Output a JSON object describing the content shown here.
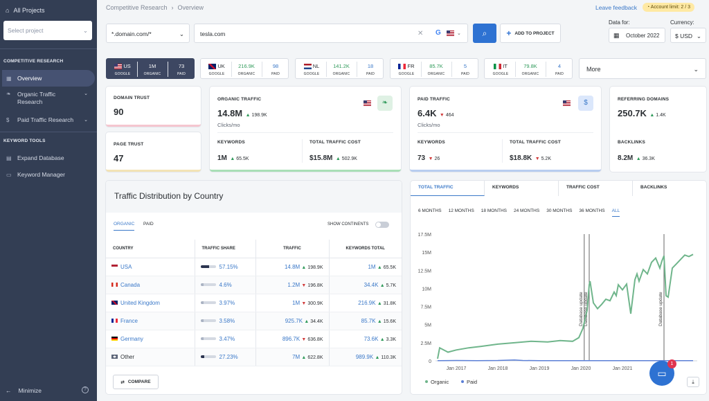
{
  "sidebar": {
    "all_projects": "All Projects",
    "select_project": "Select project",
    "section1": "COMPETITIVE RESEARCH",
    "items": [
      "Overview",
      "Organic Traffic Research",
      "Paid Traffic Research"
    ],
    "section2": "KEYWORD TOOLS",
    "tools": [
      "Expand Database",
      "Keyword Manager"
    ],
    "minimize": "Minimize"
  },
  "breadcrumb": {
    "root": "Competitive Research",
    "sep": "›",
    "current": "Overview"
  },
  "header": {
    "feedback": "Leave feedback",
    "limit": "Account limit: 2 / 3",
    "domain_mode": "*.domain.com/*",
    "query": "tesla.com",
    "add_project": "ADD TO PROJECT",
    "data_for_label": "Data for:",
    "date": "October 2022",
    "currency_label": "Currency:",
    "currency": "$ USD"
  },
  "country_tabs": [
    {
      "code": "US",
      "organic": "1M",
      "paid": "73"
    },
    {
      "code": "UK",
      "organic": "216.9K",
      "paid": "98"
    },
    {
      "code": "NL",
      "organic": "141.2K",
      "paid": "18"
    },
    {
      "code": "FR",
      "organic": "85.7K",
      "paid": "5"
    },
    {
      "code": "IT",
      "organic": "79.8K",
      "paid": "4"
    }
  ],
  "tab_labels": {
    "google": "GOOGLE",
    "organic": "ORGANIC",
    "paid": "PAID"
  },
  "more": "More",
  "metrics": {
    "domain_trust": {
      "label": "DOMAIN TRUST",
      "value": "90"
    },
    "page_trust": {
      "label": "PAGE TRUST",
      "value": "47"
    },
    "organic": {
      "label": "ORGANIC TRAFFIC",
      "value": "14.8M",
      "delta": "198.9K",
      "unit": "Clicks/mo",
      "kw_label": "KEYWORDS",
      "kw": "1M",
      "kw_delta": "65.5K",
      "cost_label": "TOTAL TRAFFIC COST",
      "cost": "$15.8M",
      "cost_delta": "502.9K"
    },
    "paid": {
      "label": "PAID TRAFFIC",
      "value": "6.4K",
      "delta": "464",
      "unit": "Clicks/mo",
      "kw_label": "KEYWORDS",
      "kw": "73",
      "kw_delta": "26",
      "cost_label": "TOTAL TRAFFIC COST",
      "cost": "$18.8K",
      "cost_delta": "5.2K"
    },
    "ref": {
      "label": "REFERRING DOMAINS",
      "value": "250.7K",
      "delta": "1.4K",
      "bl_label": "BACKLINKS",
      "bl": "8.2M",
      "bl_delta": "36.3K"
    }
  },
  "dist": {
    "title": "Traffic Distribution by Country",
    "tab_organic": "ORGANIC",
    "tab_paid": "PAID",
    "show_continents": "SHOW CONTINENTS",
    "headers": [
      "COUNTRY",
      "TRAFFIC SHARE",
      "TRAFFIC",
      "KEYWORDS TOTAL"
    ],
    "rows": [
      {
        "country": "USA",
        "share": "57.15%",
        "share_frac": 0.5715,
        "traffic": "14.8M",
        "t_delta": "198.9K",
        "t_dir": "up",
        "kw": "1M",
        "k_delta": "65.5K",
        "k_dir": "up"
      },
      {
        "country": "Canada",
        "share": "4.6%",
        "share_frac": 0.046,
        "traffic": "1.2M",
        "t_delta": "196.8K",
        "t_dir": "down",
        "kw": "34.4K",
        "k_delta": "5.7K",
        "k_dir": "up"
      },
      {
        "country": "United Kingdom",
        "share": "3.97%",
        "share_frac": 0.0397,
        "traffic": "1M",
        "t_delta": "300.9K",
        "t_dir": "down",
        "kw": "216.9K",
        "k_delta": "31.8K",
        "k_dir": "up"
      },
      {
        "country": "France",
        "share": "3.58%",
        "share_frac": 0.0358,
        "traffic": "925.7K",
        "t_delta": "34.4K",
        "t_dir": "up",
        "kw": "85.7K",
        "k_delta": "15.6K",
        "k_dir": "up"
      },
      {
        "country": "Germany",
        "share": "3.47%",
        "share_frac": 0.0347,
        "traffic": "896.7K",
        "t_delta": "636.8K",
        "t_dir": "down",
        "kw": "73.6K",
        "k_delta": "3.3K",
        "k_dir": "up"
      },
      {
        "country": "Other",
        "share": "27.23%",
        "share_frac": 0.2723,
        "traffic": "7M",
        "t_delta": "622.8K",
        "t_dir": "up",
        "kw": "989.9K",
        "k_delta": "110.3K",
        "k_dir": "up"
      }
    ],
    "compare": "COMPARE"
  },
  "chart_tabs": [
    "TOTAL TRAFFIC",
    "KEYWORDS",
    "TRAFFIC COST",
    "BACKLINKS"
  ],
  "ranges": [
    "6 MONTHS",
    "12 MONTHS",
    "18 MONTHS",
    "24 MONTHS",
    "30 MONTHS",
    "36 MONTHS",
    "ALL"
  ],
  "notif_count": "1",
  "chart_data": {
    "type": "line",
    "title": "",
    "xlabel": "",
    "ylabel": "",
    "ylim": [
      0,
      17.5
    ],
    "yticks": [
      "0",
      "2.5M",
      "5M",
      "7.5M",
      "10M",
      "12.5M",
      "15M",
      "17.5M"
    ],
    "xticks": [
      "Jan 2017",
      "Jan 2018",
      "Jan 2019",
      "Jan 2020",
      "Jan 2021"
    ],
    "xstart": 2016.5,
    "xend": 2022.8,
    "annotations": [
      {
        "label": "Database update",
        "x": 2020.08
      },
      {
        "label": "Database update",
        "x": 2020.2
      },
      {
        "label": "Database update",
        "x": 2022.0
      }
    ],
    "series": [
      {
        "name": "Organic",
        "color": "#6fb58b",
        "x": [
          2016.55,
          2016.6,
          2016.8,
          2017.0,
          2017.3,
          2017.6,
          2018.0,
          2018.4,
          2018.8,
          2019.2,
          2019.5,
          2019.8,
          2019.95,
          2020.05,
          2020.1,
          2020.15,
          2020.2,
          2020.22,
          2020.3,
          2020.4,
          2020.5,
          2020.6,
          2020.7,
          2020.8,
          2020.85,
          2020.9,
          2021.0,
          2021.1,
          2021.2,
          2021.3,
          2021.35,
          2021.4,
          2021.5,
          2021.6,
          2021.7,
          2021.8,
          2021.9,
          2021.95,
          2022.0,
          2022.05,
          2022.1,
          2022.2,
          2022.3,
          2022.4,
          2022.5,
          2022.6,
          2022.7
        ],
        "y": [
          0.3,
          1.8,
          1.2,
          1.5,
          1.8,
          2.0,
          2.3,
          2.5,
          2.7,
          2.6,
          2.8,
          2.7,
          3.2,
          4.5,
          5.8,
          7.0,
          10.5,
          11.0,
          8.0,
          7.2,
          7.8,
          8.5,
          8.3,
          9.5,
          9.0,
          10.5,
          9.8,
          10.6,
          6.5,
          11.2,
          12.0,
          11.0,
          12.6,
          12.0,
          13.6,
          14.2,
          12.8,
          13.8,
          14.5,
          9.0,
          8.8,
          12.8,
          13.4,
          14.0,
          14.6,
          14.4,
          14.7
        ]
      },
      {
        "name": "Paid",
        "color": "#5b7fd6",
        "x": [
          2016.55,
          2017.0,
          2017.5,
          2018.0,
          2018.4,
          2018.6,
          2019.0,
          2020.0,
          2021.0,
          2022.0,
          2022.7
        ],
        "y": [
          0.02,
          0.05,
          0.02,
          0.05,
          0.12,
          0.05,
          0.03,
          0.02,
          0.02,
          0.02,
          0.02
        ]
      }
    ],
    "legend": "bottom-left",
    "grid": false
  }
}
